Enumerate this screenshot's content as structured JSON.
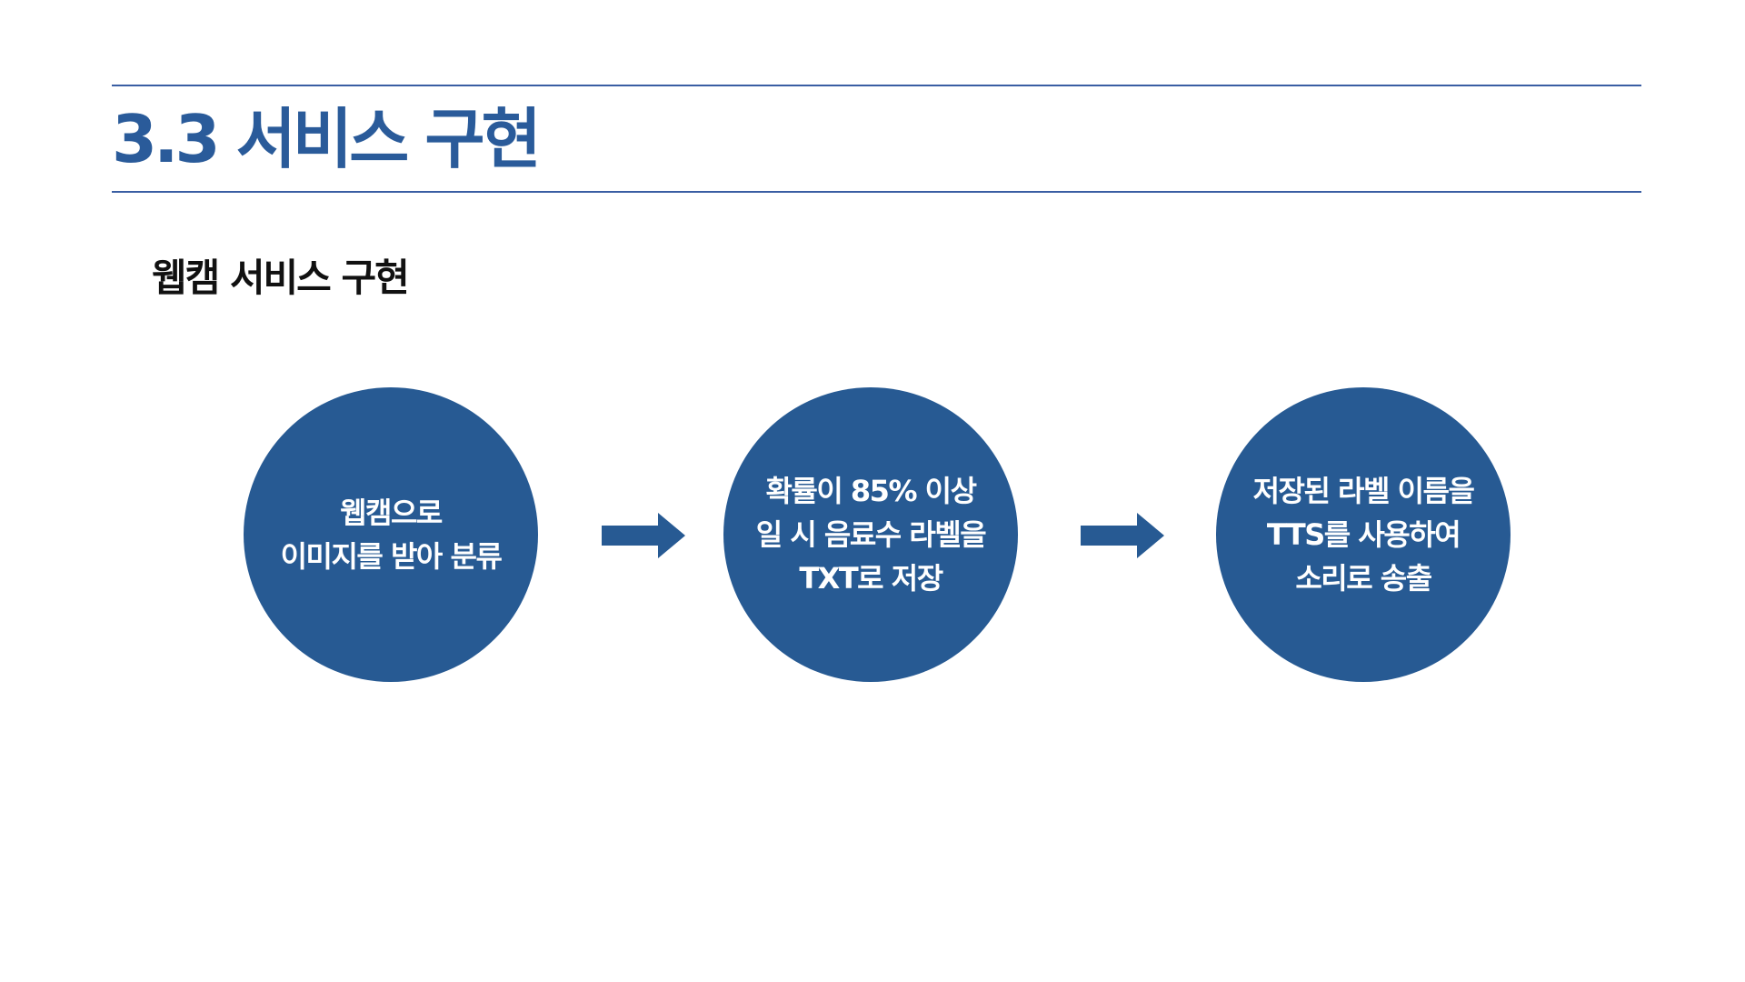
{
  "page": {
    "title": "3.3 서비스 구현",
    "section_title": "웹캠 서비스 구현"
  },
  "colors": {
    "accent": "#2a5b9a",
    "circle": "#275a93",
    "rule": "#3a5ea3"
  },
  "flow": {
    "steps": [
      {
        "lines": [
          "웹캠으로",
          "이미지를 받아 분류"
        ]
      },
      {
        "lines": [
          "확률이 85% 이상",
          "일 시 음료수 라벨을",
          "TXT로 저장"
        ]
      },
      {
        "lines": [
          "저장된 라벨 이름을",
          "TTS를 사용하여",
          "소리로 송출"
        ]
      }
    ],
    "connector_icon": "right-arrow-icon"
  }
}
